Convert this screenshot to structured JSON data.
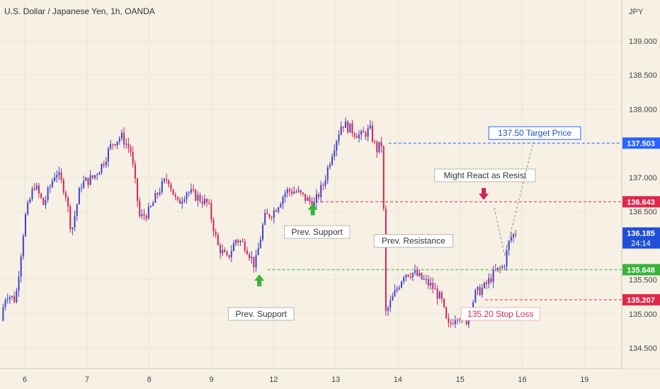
{
  "header": {
    "title": "U.S. Dollar / Japanese Yen, 1h, OANDA",
    "currency": "JPY"
  },
  "chart_data": {
    "type": "candlestick",
    "ylim": [
      134.2,
      139.6
    ],
    "yticks": [
      {
        "value": 139.0,
        "label": "139.000"
      },
      {
        "value": 138.5,
        "label": "138.500"
      },
      {
        "value": 138.0,
        "label": "138.000"
      },
      {
        "value": 137.0,
        "label": "137.000"
      },
      {
        "value": 136.5,
        "label": "136.500"
      },
      {
        "value": 135.5,
        "label": "135.500"
      },
      {
        "value": 135.0,
        "label": "135.000"
      },
      {
        "value": 134.5,
        "label": "134.500"
      }
    ],
    "xticks": [
      {
        "label": "6",
        "pos": 0.04
      },
      {
        "label": "7",
        "pos": 0.14
      },
      {
        "label": "8",
        "pos": 0.24
      },
      {
        "label": "9",
        "pos": 0.34
      },
      {
        "label": "12",
        "pos": 0.44
      },
      {
        "label": "13",
        "pos": 0.54
      },
      {
        "label": "14",
        "pos": 0.64
      },
      {
        "label": "15",
        "pos": 0.74
      },
      {
        "label": "16",
        "pos": 0.84
      },
      {
        "label": "19",
        "pos": 0.94
      }
    ],
    "price_path": [
      [
        0.0,
        134.9
      ],
      [
        0.01,
        135.3
      ],
      [
        0.025,
        135.2
      ],
      [
        0.04,
        136.4
      ],
      [
        0.055,
        136.9
      ],
      [
        0.07,
        136.6
      ],
      [
        0.09,
        137.1
      ],
      [
        0.105,
        136.8
      ],
      [
        0.115,
        136.2
      ],
      [
        0.13,
        136.9
      ],
      [
        0.15,
        137.0
      ],
      [
        0.165,
        137.2
      ],
      [
        0.18,
        137.5
      ],
      [
        0.195,
        137.6
      ],
      [
        0.21,
        137.4
      ],
      [
        0.225,
        136.4
      ],
      [
        0.24,
        136.5
      ],
      [
        0.255,
        136.8
      ],
      [
        0.27,
        137.0
      ],
      [
        0.285,
        136.6
      ],
      [
        0.3,
        136.8
      ],
      [
        0.32,
        136.7
      ],
      [
        0.335,
        136.6
      ],
      [
        0.35,
        136.0
      ],
      [
        0.365,
        135.8
      ],
      [
        0.38,
        136.1
      ],
      [
        0.395,
        136.0
      ],
      [
        0.41,
        135.7
      ],
      [
        0.425,
        136.4
      ],
      [
        0.44,
        136.5
      ],
      [
        0.46,
        136.8
      ],
      [
        0.475,
        136.8
      ],
      [
        0.49,
        136.7
      ],
      [
        0.505,
        136.6
      ],
      [
        0.52,
        136.9
      ],
      [
        0.535,
        137.4
      ],
      [
        0.55,
        137.8
      ],
      [
        0.565,
        137.7
      ],
      [
        0.58,
        137.6
      ],
      [
        0.595,
        137.7
      ],
      [
        0.605,
        137.4
      ],
      [
        0.615,
        137.5
      ],
      [
        0.62,
        135.0
      ],
      [
        0.635,
        135.3
      ],
      [
        0.65,
        135.6
      ],
      [
        0.665,
        135.6
      ],
      [
        0.68,
        135.5
      ],
      [
        0.695,
        135.4
      ],
      [
        0.71,
        135.2
      ],
      [
        0.72,
        134.8
      ],
      [
        0.735,
        135.0
      ],
      [
        0.75,
        134.9
      ],
      [
        0.765,
        135.3
      ],
      [
        0.78,
        135.4
      ],
      [
        0.795,
        135.6
      ],
      [
        0.81,
        135.7
      ],
      [
        0.82,
        136.1
      ],
      [
        0.83,
        136.2
      ]
    ],
    "levels": [
      {
        "name": "target",
        "value": 137.503,
        "label": "137.503",
        "color": "#2962ff",
        "from": 0.625
      },
      {
        "name": "resist",
        "value": 136.643,
        "label": "136.643",
        "color": "#e0284d",
        "from": 0.5
      },
      {
        "name": "support",
        "value": 135.648,
        "label": "135.648",
        "color": "#3bb33b",
        "from": 0.43
      },
      {
        "name": "stop",
        "value": 135.207,
        "label": "135.207",
        "color": "#e0284d",
        "from": 0.78
      }
    ],
    "last_price": {
      "value": 136.185,
      "label": "136.185",
      "countdown": "24:14",
      "color": "#1e4fd6"
    },
    "annotations": [
      {
        "text": "137.50 Target Price",
        "x": 0.86,
        "price": 137.65,
        "style": "target"
      },
      {
        "text": "Might React as Resist",
        "x": 0.78,
        "price": 137.03,
        "style": "plain"
      },
      {
        "text": "Prev. Support",
        "x": 0.51,
        "price": 136.2,
        "style": "plain"
      },
      {
        "text": "Prev. Support",
        "x": 0.42,
        "price": 135.0,
        "style": "plain"
      },
      {
        "text": "Prev. Resistance",
        "x": 0.665,
        "price": 136.07,
        "style": "plain"
      },
      {
        "text": "135.20 Stop Loss",
        "x": 0.805,
        "price": 135.0,
        "style": "stop"
      }
    ]
  }
}
